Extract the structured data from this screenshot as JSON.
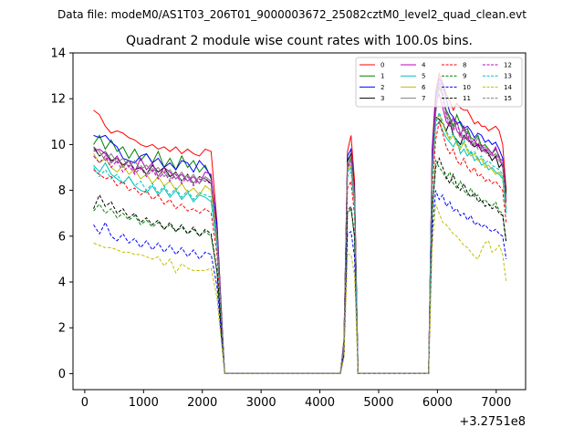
{
  "suptitle": "Data file: modeM0/AS1T03_206T01_9000003672_25082cztM0_level2_quad_clean.evt",
  "chart_data": {
    "type": "line",
    "title": "Quadrant 2 module wise count rates with 100.0s bins.",
    "xlabel": "",
    "ylabel": "",
    "x_offset_label": "+3.2751e8",
    "xlim": [
      -200,
      7500
    ],
    "ylim": [
      -0.7,
      14
    ],
    "xticks": [
      0,
      1000,
      2000,
      3000,
      4000,
      5000,
      6000,
      7000
    ],
    "xtick_labels": [
      "0",
      "1000",
      "2000",
      "3000",
      "4000",
      "5000",
      "6000",
      "7000"
    ],
    "yticks": [
      0,
      2,
      4,
      6,
      8,
      10,
      12,
      14
    ],
    "ytick_labels": [
      "0",
      "2",
      "4",
      "6",
      "8",
      "10",
      "12",
      "14"
    ],
    "grid": false,
    "legend_position": "top-right",
    "x": [
      150,
      250,
      350,
      450,
      550,
      650,
      750,
      850,
      950,
      1050,
      1150,
      1250,
      1350,
      1450,
      1550,
      1650,
      1750,
      1850,
      1950,
      2050,
      2150,
      2250,
      2320,
      2380,
      4350,
      4410,
      4470,
      4530,
      4590,
      4650,
      4710,
      4770,
      4830,
      5850,
      5910,
      5970,
      6030,
      6090,
      6150,
      6210,
      6270,
      6330,
      6390,
      6450,
      6510,
      6570,
      6630,
      6690,
      6750,
      6810,
      6870,
      6930,
      6990,
      7050,
      7110,
      7170
    ],
    "series": [
      {
        "name": "0",
        "color": "#ff0000",
        "dash": "solid",
        "values": [
          11.5,
          11.3,
          10.8,
          10.5,
          10.6,
          10.5,
          10.3,
          10.2,
          10.0,
          9.9,
          10.0,
          9.8,
          9.9,
          9.7,
          9.9,
          9.6,
          9.8,
          9.6,
          9.5,
          9.8,
          9.7,
          6.6,
          3.0,
          0.0,
          0.0,
          1.5,
          9.7,
          10.4,
          8.4,
          0.0,
          0.0,
          0.0,
          0.0,
          0.0,
          9.8,
          12.3,
          13.1,
          12.7,
          12.2,
          11.9,
          11.5,
          11.8,
          11.6,
          11.5,
          11.5,
          11.2,
          10.9,
          11.0,
          10.8,
          10.8,
          10.6,
          10.7,
          10.8,
          10.6,
          10.0,
          8.0
        ]
      },
      {
        "name": "1",
        "color": "#008000",
        "dash": "solid",
        "values": [
          10.0,
          10.4,
          9.8,
          10.2,
          9.7,
          9.9,
          9.4,
          9.8,
          9.3,
          9.6,
          9.2,
          9.7,
          9.0,
          9.4,
          8.9,
          9.5,
          9.0,
          9.3,
          8.8,
          9.1,
          8.5,
          6.2,
          2.8,
          0.0,
          0.0,
          1.3,
          9.0,
          9.4,
          7.7,
          0.0,
          0.0,
          0.0,
          0.0,
          0.0,
          9.3,
          11.6,
          12.5,
          12.1,
          11.5,
          11.2,
          10.8,
          11.3,
          10.9,
          10.6,
          10.7,
          10.3,
          10.2,
          10.4,
          9.9,
          10.0,
          9.8,
          9.6,
          9.8,
          9.5,
          9.0,
          7.6
        ]
      },
      {
        "name": "2",
        "color": "#0000ff",
        "dash": "solid",
        "values": [
          10.4,
          10.3,
          10.4,
          10.1,
          9.9,
          9.4,
          9.3,
          9.2,
          9.5,
          9.6,
          9.2,
          9.4,
          9.0,
          9.2,
          8.9,
          9.3,
          9.2,
          8.8,
          9.3,
          9.0,
          8.6,
          6.5,
          2.9,
          0.0,
          0.0,
          1.4,
          9.5,
          9.8,
          8.0,
          0.0,
          0.0,
          0.0,
          0.0,
          0.0,
          9.6,
          12.0,
          12.9,
          12.6,
          12.0,
          11.4,
          11.2,
          10.9,
          11.0,
          10.7,
          10.8,
          10.6,
          10.3,
          10.5,
          10.4,
          10.1,
          10.2,
          10.0,
          10.1,
          9.8,
          9.4,
          7.8
        ]
      },
      {
        "name": "3",
        "color": "#000000",
        "dash": "solid",
        "values": [
          9.9,
          9.5,
          9.7,
          9.3,
          9.4,
          9.1,
          9.3,
          8.9,
          9.0,
          8.7,
          9.1,
          8.8,
          9.0,
          8.6,
          8.8,
          8.4,
          8.7,
          8.3,
          8.6,
          8.5,
          8.3,
          6.0,
          2.7,
          0.0,
          0.0,
          1.3,
          9.3,
          9.6,
          7.9,
          0.0,
          0.0,
          0.0,
          0.0,
          0.0,
          8.9,
          11.2,
          11.1,
          10.9,
          10.6,
          11.0,
          10.4,
          10.2,
          10.0,
          10.4,
          10.2,
          10.1,
          9.9,
          10.0,
          9.7,
          9.8,
          9.6,
          9.3,
          9.5,
          9.0,
          9.2,
          7.9
        ]
      },
      {
        "name": "4",
        "color": "#bf00bf",
        "dash": "solid",
        "values": [
          9.7,
          9.8,
          9.6,
          9.2,
          9.5,
          9.0,
          9.3,
          8.8,
          9.4,
          8.9,
          9.2,
          8.6,
          9.0,
          8.8,
          8.5,
          8.7,
          8.4,
          8.6,
          8.3,
          8.8,
          8.7,
          6.1,
          2.7,
          0.0,
          0.0,
          1.2,
          9.1,
          9.3,
          7.6,
          0.0,
          0.0,
          0.0,
          0.0,
          0.0,
          9.2,
          11.8,
          12.2,
          11.6,
          11.0,
          10.8,
          11.2,
          10.6,
          10.4,
          10.8,
          10.3,
          10.1,
          10.2,
          9.9,
          10.0,
          9.7,
          9.8,
          9.6,
          9.9,
          9.4,
          9.3,
          7.5
        ]
      },
      {
        "name": "5",
        "color": "#00bfbf",
        "dash": "solid",
        "values": [
          9.1,
          8.8,
          9.2,
          8.7,
          8.5,
          8.3,
          8.6,
          8.2,
          8.0,
          7.9,
          8.2,
          7.8,
          8.1,
          7.7,
          8.0,
          7.6,
          7.9,
          7.5,
          7.8,
          7.7,
          7.5,
          5.6,
          2.5,
          0.0,
          0.0,
          1.2,
          8.8,
          9.0,
          7.4,
          0.0,
          0.0,
          0.0,
          0.0,
          0.0,
          8.6,
          10.8,
          11.0,
          10.6,
          10.3,
          10.1,
          9.9,
          10.2,
          9.6,
          9.8,
          9.5,
          9.7,
          9.3,
          9.4,
          9.1,
          9.2,
          8.9,
          9.0,
          8.8,
          8.7,
          8.5,
          7.0
        ]
      },
      {
        "name": "6",
        "color": "#bfbf00",
        "dash": "solid",
        "values": [
          9.6,
          9.2,
          9.4,
          9.0,
          8.8,
          9.1,
          8.7,
          8.9,
          8.5,
          8.7,
          8.3,
          8.6,
          8.2,
          8.4,
          8.0,
          8.3,
          7.9,
          8.1,
          7.8,
          8.2,
          8.0,
          5.8,
          2.6,
          0.0,
          0.0,
          1.2,
          8.9,
          9.1,
          7.5,
          0.0,
          0.0,
          0.0,
          0.0,
          0.0,
          8.8,
          11.0,
          11.3,
          10.9,
          10.5,
          10.2,
          10.4,
          10.0,
          9.8,
          10.1,
          9.7,
          9.5,
          9.6,
          9.3,
          9.4,
          9.0,
          9.1,
          8.9,
          8.7,
          8.8,
          8.6,
          7.2
        ]
      },
      {
        "name": "7",
        "color": "#808080",
        "dash": "solid",
        "values": [
          9.9,
          9.7,
          9.3,
          9.6,
          9.2,
          9.4,
          9.0,
          9.3,
          8.9,
          9.1,
          8.8,
          9.0,
          8.6,
          8.9,
          8.5,
          8.8,
          8.4,
          8.7,
          8.3,
          8.6,
          8.4,
          6.0,
          2.7,
          0.0,
          0.0,
          1.3,
          9.2,
          9.5,
          7.8,
          0.0,
          0.0,
          0.0,
          0.0,
          0.0,
          9.0,
          11.3,
          12.7,
          12.2,
          11.4,
          11.1,
          10.7,
          11.0,
          10.5,
          10.3,
          10.6,
          10.2,
          10.0,
          10.3,
          9.8,
          9.9,
          9.7,
          9.5,
          9.6,
          9.4,
          9.1,
          7.6
        ]
      },
      {
        "name": "8",
        "color": "#ff0000",
        "dash": "dashed",
        "values": [
          8.9,
          8.7,
          8.5,
          8.6,
          8.2,
          8.4,
          8.0,
          8.1,
          7.8,
          8.0,
          7.6,
          7.8,
          7.4,
          7.6,
          7.2,
          7.4,
          7.1,
          7.2,
          7.0,
          7.2,
          7.0,
          5.2,
          2.3,
          0.0,
          0.0,
          1.1,
          8.1,
          8.4,
          6.9,
          0.0,
          0.0,
          0.0,
          0.0,
          0.0,
          8.0,
          10.2,
          11.0,
          10.5,
          9.9,
          9.6,
          9.8,
          9.3,
          9.1,
          9.4,
          9.0,
          8.8,
          9.0,
          8.6,
          8.7,
          8.4,
          8.5,
          8.3,
          8.4,
          8.2,
          8.0,
          6.6
        ]
      },
      {
        "name": "9",
        "color": "#008000",
        "dash": "dashed",
        "values": [
          7.1,
          7.4,
          7.0,
          7.2,
          6.8,
          7.0,
          6.7,
          6.9,
          6.5,
          6.7,
          6.4,
          6.6,
          6.3,
          6.5,
          6.2,
          6.4,
          6.1,
          6.3,
          6.0,
          6.2,
          6.0,
          4.4,
          2.0,
          0.0,
          0.0,
          0.9,
          7.0,
          7.2,
          5.9,
          0.0,
          0.0,
          0.0,
          0.0,
          0.0,
          7.0,
          9.3,
          9.0,
          8.8,
          8.5,
          8.8,
          8.3,
          8.1,
          8.4,
          8.0,
          7.8,
          8.1,
          7.7,
          7.8,
          7.5,
          7.6,
          7.4,
          7.3,
          7.5,
          7.1,
          7.0,
          5.8
        ]
      },
      {
        "name": "10",
        "color": "#0000ff",
        "dash": "dashed",
        "values": [
          6.5,
          6.1,
          6.6,
          6.0,
          5.8,
          6.1,
          5.7,
          5.9,
          5.5,
          5.8,
          5.4,
          5.7,
          5.3,
          5.6,
          5.2,
          5.5,
          5.1,
          5.4,
          5.0,
          5.3,
          5.2,
          3.8,
          1.7,
          0.0,
          0.0,
          0.8,
          6.1,
          6.2,
          5.1,
          0.0,
          0.0,
          0.0,
          0.0,
          0.0,
          6.2,
          8.0,
          7.6,
          7.8,
          7.3,
          7.5,
          7.1,
          7.2,
          6.9,
          7.0,
          6.7,
          6.9,
          6.5,
          6.6,
          6.4,
          6.5,
          6.3,
          6.2,
          6.3,
          6.1,
          6.0,
          5.0
        ]
      },
      {
        "name": "11",
        "color": "#000000",
        "dash": "dashed",
        "values": [
          7.2,
          7.8,
          7.3,
          7.5,
          7.0,
          7.2,
          6.8,
          7.0,
          6.6,
          6.8,
          6.5,
          6.7,
          6.3,
          6.6,
          6.2,
          6.5,
          6.1,
          6.4,
          6.0,
          6.3,
          6.1,
          4.5,
          2.0,
          0.0,
          0.0,
          0.9,
          7.1,
          7.3,
          6.0,
          0.0,
          0.0,
          0.0,
          0.0,
          0.0,
          7.1,
          9.0,
          9.4,
          9.0,
          8.6,
          8.3,
          8.7,
          8.2,
          8.0,
          8.3,
          7.9,
          7.7,
          7.9,
          7.5,
          7.6,
          7.3,
          7.4,
          7.2,
          7.3,
          7.0,
          6.9,
          5.7
        ]
      },
      {
        "name": "12",
        "color": "#bf00bf",
        "dash": "dashed",
        "values": [
          9.5,
          9.2,
          9.5,
          9.0,
          9.3,
          8.8,
          9.1,
          8.7,
          9.0,
          8.6,
          8.9,
          8.5,
          8.8,
          8.4,
          8.7,
          8.3,
          8.6,
          8.2,
          8.5,
          8.4,
          8.3,
          6.0,
          2.7,
          0.0,
          0.0,
          1.2,
          9.0,
          9.2,
          7.6,
          0.0,
          0.0,
          0.0,
          0.0,
          0.0,
          9.1,
          11.5,
          12.9,
          12.3,
          11.3,
          10.9,
          10.6,
          11.0,
          10.4,
          10.2,
          10.5,
          10.0,
          9.9,
          10.1,
          9.7,
          9.8,
          9.5,
          9.6,
          9.4,
          9.3,
          9.1,
          7.4
        ]
      },
      {
        "name": "13",
        "color": "#00bfbf",
        "dash": "dashed",
        "values": [
          9.0,
          8.6,
          8.9,
          8.5,
          8.7,
          8.3,
          8.6,
          8.2,
          8.4,
          8.0,
          8.3,
          7.9,
          8.2,
          7.8,
          8.1,
          7.7,
          8.0,
          7.6,
          7.9,
          7.8,
          7.7,
          5.6,
          2.5,
          0.0,
          0.0,
          1.2,
          8.6,
          8.8,
          7.3,
          0.0,
          0.0,
          0.0,
          0.0,
          0.0,
          8.7,
          10.9,
          11.4,
          11.0,
          10.6,
          10.3,
          10.5,
          10.1,
          9.9,
          10.2,
          9.8,
          9.6,
          9.7,
          9.4,
          9.5,
          9.2,
          9.3,
          9.1,
          9.0,
          8.9,
          8.7,
          7.2
        ]
      },
      {
        "name": "14",
        "color": "#bfbf00",
        "dash": "dashed",
        "values": [
          5.7,
          5.6,
          5.5,
          5.5,
          5.4,
          5.3,
          5.3,
          5.2,
          5.2,
          5.1,
          5.0,
          5.1,
          4.7,
          5.0,
          4.4,
          4.8,
          4.6,
          4.5,
          4.5,
          4.5,
          4.6,
          3.3,
          1.5,
          0.0,
          0.0,
          0.7,
          5.2,
          5.2,
          4.3,
          0.0,
          0.0,
          0.0,
          0.0,
          0.0,
          5.5,
          7.4,
          7.0,
          6.6,
          6.5,
          6.3,
          6.1,
          6.0,
          5.8,
          5.6,
          5.5,
          5.3,
          5.1,
          5.0,
          5.4,
          5.7,
          5.8,
          5.3,
          5.4,
          5.6,
          5.2,
          4.0
        ]
      },
      {
        "name": "15",
        "color": "#808080",
        "dash": "dashed",
        "values": [
          9.8,
          9.5,
          9.7,
          9.2,
          9.4,
          9.0,
          9.3,
          8.9,
          9.1,
          8.7,
          9.0,
          8.6,
          8.9,
          8.5,
          8.8,
          8.4,
          8.7,
          8.3,
          8.6,
          8.5,
          8.4,
          6.1,
          2.7,
          0.0,
          0.0,
          1.2,
          9.1,
          9.3,
          7.7,
          0.0,
          0.0,
          0.0,
          0.0,
          0.0,
          9.0,
          11.4,
          12.6,
          12.0,
          11.2,
          10.8,
          11.1,
          10.6,
          10.3,
          10.7,
          10.2,
          10.0,
          10.1,
          9.8,
          9.9,
          9.6,
          9.7,
          9.5,
          9.6,
          9.3,
          9.2,
          7.6
        ]
      }
    ]
  }
}
